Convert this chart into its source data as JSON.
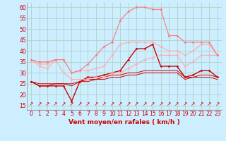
{
  "xlabel": "Vent moyen/en rafales ( km/h )",
  "bg_color": "#cceeff",
  "grid_color": "#aaccbb",
  "xlim": [
    -0.5,
    23.5
  ],
  "ylim": [
    13,
    62
  ],
  "yticks": [
    15,
    20,
    25,
    30,
    35,
    40,
    45,
    50,
    55,
    60
  ],
  "xticks": [
    0,
    1,
    2,
    3,
    4,
    5,
    6,
    7,
    8,
    9,
    10,
    11,
    12,
    13,
    14,
    15,
    16,
    17,
    18,
    19,
    20,
    21,
    22,
    23
  ],
  "series": [
    {
      "x": [
        0,
        1,
        2,
        3,
        4,
        5,
        6,
        7,
        8,
        9,
        10,
        11,
        12,
        13,
        14,
        15,
        16,
        17,
        18,
        19,
        20,
        21,
        22,
        23
      ],
      "y": [
        26,
        24,
        24,
        24,
        24,
        17,
        26,
        28,
        28,
        29,
        30,
        31,
        36,
        41,
        41,
        43,
        33,
        33,
        33,
        28,
        29,
        31,
        31,
        28
      ],
      "color": "#cc0000",
      "marker": "D",
      "markersize": 1.5,
      "linewidth": 1.0
    },
    {
      "x": [
        0,
        1,
        2,
        3,
        4,
        5,
        6,
        7,
        8,
        9,
        10,
        11,
        12,
        13,
        14,
        15,
        16,
        17,
        18,
        19,
        20,
        21,
        22,
        23
      ],
      "y": [
        26,
        24,
        24,
        25,
        25,
        24,
        26,
        27,
        27,
        28,
        29,
        29,
        30,
        30,
        31,
        31,
        31,
        31,
        31,
        28,
        28,
        29,
        29,
        28
      ],
      "color": "#cc0000",
      "marker": null,
      "markersize": 0,
      "linewidth": 0.7
    },
    {
      "x": [
        0,
        1,
        2,
        3,
        4,
        5,
        6,
        7,
        8,
        9,
        10,
        11,
        12,
        13,
        14,
        15,
        16,
        17,
        18,
        19,
        20,
        21,
        22,
        23
      ],
      "y": [
        26,
        25,
        25,
        25,
        25,
        25,
        26,
        26,
        27,
        27,
        28,
        28,
        29,
        29,
        30,
        30,
        30,
        30,
        30,
        27,
        28,
        28,
        28,
        27
      ],
      "color": "#cc0000",
      "marker": null,
      "markersize": 0,
      "linewidth": 0.7
    },
    {
      "x": [
        0,
        1,
        2,
        3,
        4,
        5,
        6,
        7,
        8,
        9,
        10,
        11,
        12,
        13,
        14,
        15,
        16,
        17,
        18,
        19,
        20,
        21,
        22,
        23
      ],
      "y": [
        36,
        33,
        32,
        36,
        30,
        27,
        27,
        27,
        28,
        28,
        30,
        30,
        32,
        34,
        36,
        37,
        38,
        38,
        38,
        33,
        35,
        38,
        38,
        38
      ],
      "color": "#ffaaaa",
      "marker": "D",
      "markersize": 1.5,
      "linewidth": 0.8
    },
    {
      "x": [
        0,
        1,
        2,
        3,
        4,
        5,
        6,
        7,
        8,
        9,
        10,
        11,
        12,
        13,
        14,
        15,
        16,
        17,
        18,
        19,
        20,
        21,
        22,
        23
      ],
      "y": [
        36,
        34,
        34,
        36,
        36,
        30,
        31,
        31,
        32,
        33,
        38,
        43,
        44,
        44,
        44,
        44,
        42,
        40,
        40,
        38,
        40,
        43,
        43,
        38
      ],
      "color": "#ffaaaa",
      "marker": "D",
      "markersize": 1.5,
      "linewidth": 0.8
    },
    {
      "x": [
        0,
        1,
        2,
        3,
        4,
        5,
        6,
        7,
        8,
        9,
        10,
        11,
        12,
        13,
        14,
        15,
        16,
        17,
        18,
        19,
        20,
        21,
        22,
        23
      ],
      "y": [
        36,
        35,
        35,
        36,
        36,
        30,
        31,
        34,
        38,
        42,
        44,
        54,
        58,
        60,
        60,
        59,
        59,
        47,
        47,
        44,
        44,
        44,
        44,
        38
      ],
      "color": "#ff7777",
      "marker": "D",
      "markersize": 1.5,
      "linewidth": 0.8
    }
  ],
  "arrow_char": "↗",
  "arrow_color": "#cc0000",
  "font_color": "#cc0000",
  "tick_fontsize": 5.5,
  "arrow_fontsize": 5.5,
  "label_fontsize": 6.5
}
